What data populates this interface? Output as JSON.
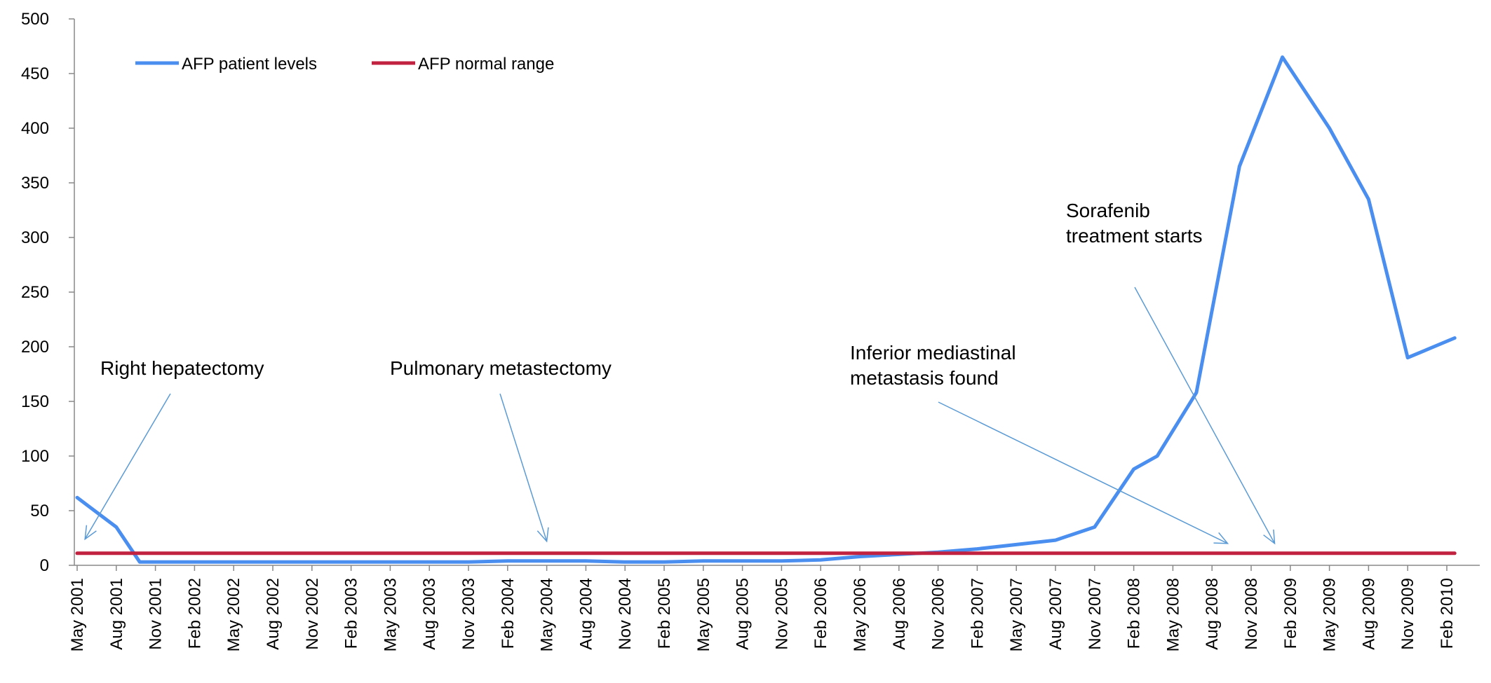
{
  "chart_data": {
    "type": "line",
    "title": "",
    "xlabel": "",
    "ylabel": "",
    "ylim": [
      0,
      500
    ],
    "yticks": [
      "0",
      "50",
      "100",
      "150",
      "200",
      "250",
      "300",
      "350",
      "400",
      "450",
      "500"
    ],
    "categories": [
      "May 2001",
      "Aug 2001",
      "Nov 2001",
      "Feb 2002",
      "May 2002",
      "Aug 2002",
      "Nov 2002",
      "Feb 2003",
      "May 2003",
      "Aug 2003",
      "Nov 2003",
      "Feb 2004",
      "May 2004",
      "Aug 2004",
      "Nov 2004",
      "Feb 2005",
      "May 2005",
      "Aug 2005",
      "Nov 2005",
      "Feb 2006",
      "May 2006",
      "Aug 2006",
      "Nov 2006",
      "Feb 2007",
      "May 2007",
      "Aug 2007",
      "Nov 2007",
      "Feb 2008",
      "May 2008",
      "Aug 2008",
      "Nov 2008",
      "Feb 2009",
      "May 2009",
      "Aug 2009",
      "Nov 2009",
      "Feb 2010"
    ],
    "series": [
      {
        "name": "AFP patient levels",
        "color": "#4A8EF0",
        "points": [
          {
            "x": 0,
            "y": 62
          },
          {
            "x": 1,
            "y": 35
          },
          {
            "x": 1.6,
            "y": 3
          },
          {
            "x": 3,
            "y": 3
          },
          {
            "x": 5,
            "y": 3
          },
          {
            "x": 7,
            "y": 3
          },
          {
            "x": 9,
            "y": 3
          },
          {
            "x": 10,
            "y": 3
          },
          {
            "x": 11,
            "y": 4
          },
          {
            "x": 12,
            "y": 4
          },
          {
            "x": 13,
            "y": 4
          },
          {
            "x": 14,
            "y": 3
          },
          {
            "x": 15,
            "y": 3
          },
          {
            "x": 16,
            "y": 4
          },
          {
            "x": 17,
            "y": 4
          },
          {
            "x": 18,
            "y": 4
          },
          {
            "x": 19,
            "y": 5
          },
          {
            "x": 20,
            "y": 8
          },
          {
            "x": 21,
            "y": 10
          },
          {
            "x": 22,
            "y": 12
          },
          {
            "x": 23,
            "y": 15
          },
          {
            "x": 24,
            "y": 19
          },
          {
            "x": 25,
            "y": 23
          },
          {
            "x": 26,
            "y": 35
          },
          {
            "x": 27,
            "y": 88
          },
          {
            "x": 27.6,
            "y": 100
          },
          {
            "x": 28.6,
            "y": 158
          },
          {
            "x": 29.7,
            "y": 365
          },
          {
            "x": 30.8,
            "y": 465
          },
          {
            "x": 32,
            "y": 400
          },
          {
            "x": 33,
            "y": 335
          },
          {
            "x": 34,
            "y": 190
          },
          {
            "x": 35.2,
            "y": 208
          }
        ]
      },
      {
        "name": "AFP normal range",
        "color": "#C0223F",
        "points": [
          {
            "x": 0,
            "y": 11
          },
          {
            "x": 35.2,
            "y": 11
          }
        ]
      }
    ],
    "legend": [
      {
        "label": "AFP patient levels",
        "color": "#4A8EF0"
      },
      {
        "label": "AFP normal range",
        "color": "#C0223F"
      }
    ],
    "legend_position": "top-left",
    "annotations": [
      {
        "lines": [
          "Right hepatectomy"
        ],
        "target": {
          "x": 0.2,
          "y": 24
        }
      },
      {
        "lines": [
          "Pulmonary metastectomy"
        ],
        "target": {
          "x": 12.0,
          "y": 22
        }
      },
      {
        "lines": [
          "Inferior mediastinal",
          "metastasis found"
        ],
        "target": {
          "x": 29.4,
          "y": 20
        }
      },
      {
        "lines": [
          "Sorafenib",
          "treatment starts"
        ],
        "target": {
          "x": 30.6,
          "y": 20
        }
      }
    ],
    "annotation_arrow_color": "#5B9BD5",
    "axis_color": "#888888"
  }
}
